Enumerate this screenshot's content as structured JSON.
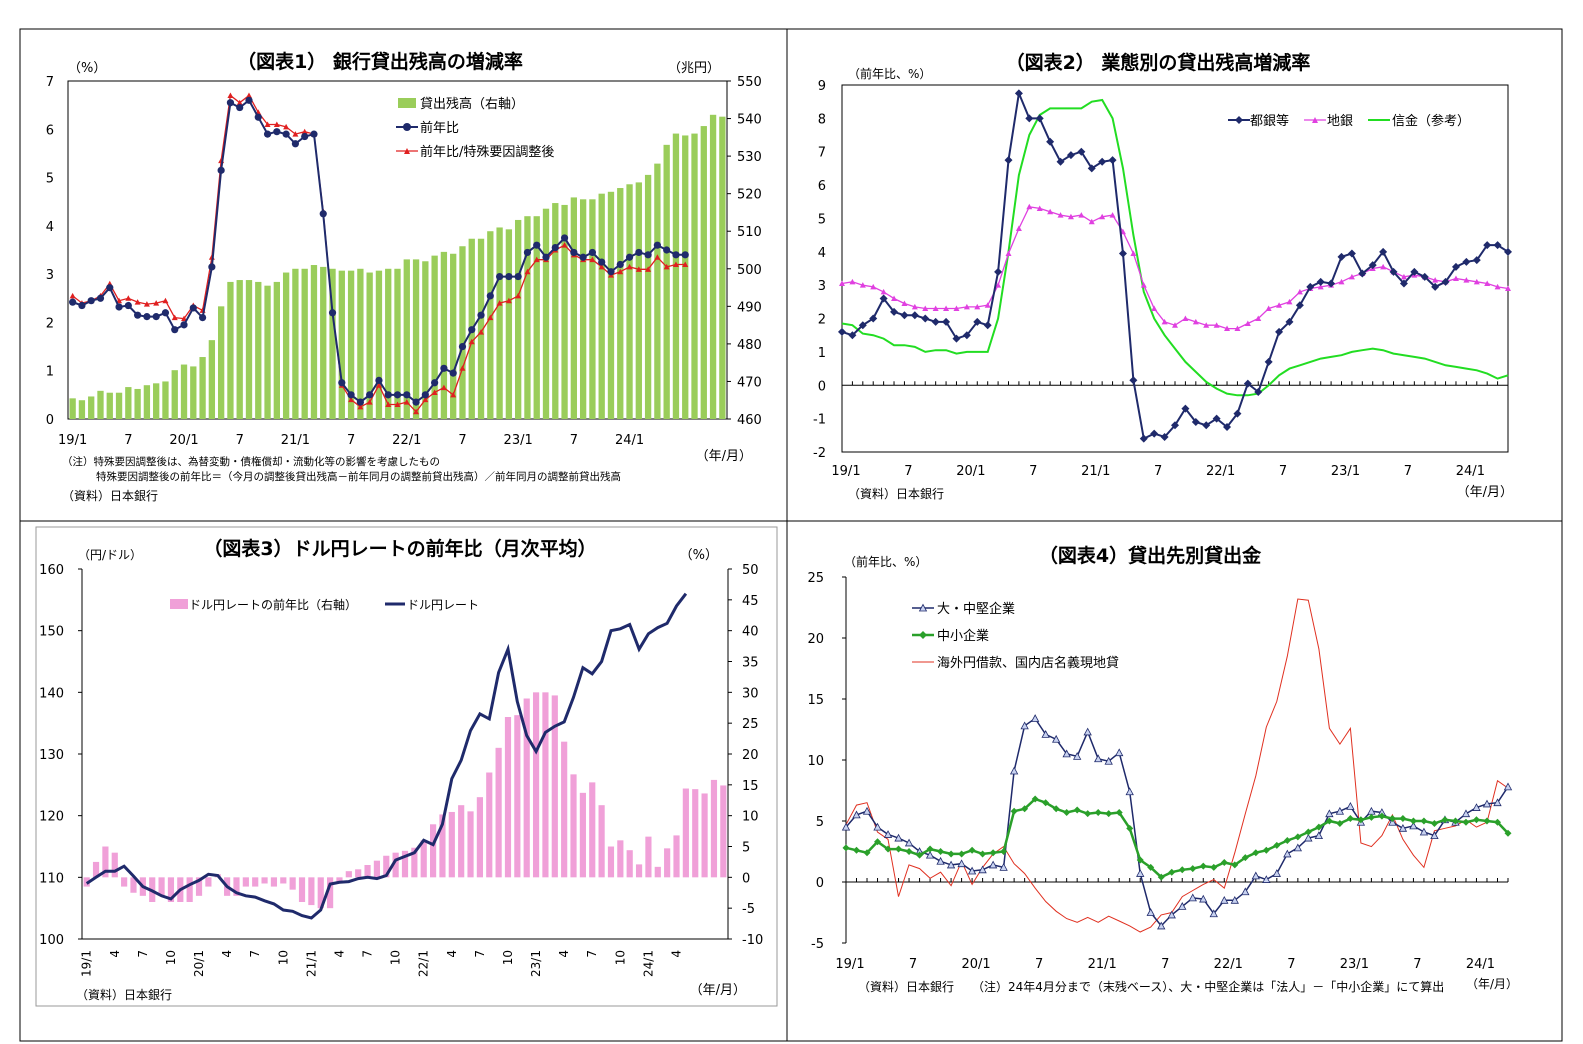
{
  "charts": [
    {
      "title": "（図表1） 銀行貸出残高の増減率",
      "left_unit": "（%）",
      "right_unit": "（兆円）",
      "left_ticks": [
        "0",
        "1",
        "2",
        "3",
        "4",
        "5",
        "6",
        "7"
      ],
      "right_ticks": [
        "460",
        "470",
        "480",
        "490",
        "500",
        "510",
        "520",
        "530",
        "540",
        "550"
      ],
      "x_labels": [
        "19/1",
        "7",
        "20/1",
        "7",
        "21/1",
        "7",
        "22/1",
        "7",
        "23/1",
        "7",
        "24/1"
      ],
      "x_unit": "（年/月）",
      "legend": [
        "貸出残高（右軸）",
        "前年比",
        "前年比/特殊要因調整後"
      ],
      "notes": [
        "（注）特殊要因調整後は、為替変動・債権償却・流動化等の影響を考慮したもの",
        "特殊要因調整後の前年比＝（今月の調整後貸出残高－前年同月の調整前貸出残高）／前年同月の調整前貸出残高",
        "（資料）日本銀行"
      ]
    },
    {
      "title": "（図表2） 業態別の貸出残高増減率",
      "left_unit": "（前年比、%）",
      "left_ticks": [
        "-2",
        "-1",
        "0",
        "1",
        "2",
        "3",
        "4",
        "5",
        "6",
        "7",
        "8",
        "9"
      ],
      "x_labels": [
        "19/1",
        "7",
        "20/1",
        "7",
        "21/1",
        "7",
        "22/1",
        "7",
        "23/1",
        "7",
        "24/1"
      ],
      "x_unit": "（年/月）",
      "legend": [
        "都銀等",
        "地銀",
        "信金（参考）"
      ],
      "notes": [
        "（資料）日本銀行"
      ]
    },
    {
      "title": "（図表3）ドル円レートの前年比（月次平均）",
      "left_unit": "（円/ドル）",
      "right_unit": "（%）",
      "left_ticks": [
        "100",
        "110",
        "120",
        "130",
        "140",
        "150",
        "160"
      ],
      "right_ticks": [
        "-10",
        "-5",
        "0",
        "5",
        "10",
        "15",
        "20",
        "25",
        "30",
        "35",
        "40",
        "45",
        "50"
      ],
      "x_labels": [
        "19/1",
        "4",
        "7",
        "10",
        "20/1",
        "4",
        "7",
        "10",
        "21/1",
        "4",
        "7",
        "10",
        "22/1",
        "4",
        "7",
        "10",
        "23/1",
        "4",
        "7",
        "10",
        "24/1",
        "4"
      ],
      "x_unit": "（年/月）",
      "legend": [
        "ドル円レートの前年比（右軸）",
        "ドル円レート"
      ],
      "notes": [
        "（資料）日本銀行"
      ]
    },
    {
      "title": "（図表4）貸出先別貸出金",
      "left_unit": "（前年比、%）",
      "left_ticks": [
        "-5",
        "0",
        "5",
        "10",
        "15",
        "20",
        "25"
      ],
      "x_labels": [
        "19/1",
        "7",
        "20/1",
        "7",
        "21/1",
        "7",
        "22/1",
        "7",
        "23/1",
        "7",
        "24/1"
      ],
      "x_unit": "（年/月）",
      "legend": [
        "大・中堅企業",
        "中小企業",
        "海外円借款、国内店名義現地貸"
      ],
      "notes": [
        "（資料）日本銀行　　（注）24年4月分まで（末残ベース）、大・中堅企業は「法人」－「中小企業」にて算出"
      ]
    }
  ],
  "colors": {
    "bar_green": "#9ACD5A",
    "navy": "#1F2A6B",
    "red": "#E02020",
    "magenta": "#E040E0",
    "green_line": "#22DD22",
    "pink_bar": "#F0A0D8",
    "dark_green": "#2AA02A",
    "thin_red": "#E03020"
  },
  "chart_data": [
    {
      "type": "bar+line",
      "name": "fig1",
      "bar_values": [
        465.5,
        465,
        466,
        467.5,
        467,
        467,
        468.5,
        468,
        469,
        469.5,
        470,
        473,
        474.5,
        474,
        476.5,
        481,
        490,
        496.5,
        497,
        497,
        496.5,
        495.5,
        496.5,
        499,
        500,
        500,
        501,
        500.5,
        500,
        499.5,
        499.5,
        500,
        499,
        499.5,
        500,
        500,
        502.5,
        502.5,
        502,
        503.5,
        504.5,
        504,
        506,
        508,
        508,
        510,
        511,
        510.5,
        513,
        514,
        514,
        516,
        517.5,
        517,
        519,
        518.5,
        518.5,
        520,
        520.5,
        521.5,
        522.5,
        523,
        525,
        528,
        533,
        536,
        535.5,
        536,
        538,
        541,
        540.5
      ],
      "yoy": [
        2.42,
        2.35,
        2.45,
        2.5,
        2.72,
        2.32,
        2.35,
        2.15,
        2.12,
        2.12,
        2.2,
        1.85,
        1.95,
        2.3,
        2.1,
        3.15,
        5.15,
        6.55,
        6.45,
        6.6,
        6.25,
        5.9,
        5.95,
        5.9,
        5.7,
        5.85,
        5.9,
        4.25,
        2.2,
        0.75,
        0.5,
        0.35,
        0.5,
        0.8,
        0.5,
        0.5,
        0.5,
        0.35,
        0.5,
        0.75,
        1.05,
        0.95,
        1.5,
        1.85,
        2.15,
        2.55,
        2.95,
        2.95,
        2.95,
        3.45,
        3.6,
        3.35,
        3.55,
        3.75,
        3.45,
        3.35,
        3.45,
        3.25,
        3.05,
        3.2,
        3.35,
        3.45,
        3.4,
        3.6,
        3.5,
        3.4,
        3.4
      ],
      "adj": [
        2.55,
        2.4,
        2.45,
        2.55,
        2.8,
        2.45,
        2.5,
        2.42,
        2.38,
        2.4,
        2.45,
        2.1,
        2.08,
        2.35,
        2.25,
        3.35,
        5.35,
        6.7,
        6.55,
        6.7,
        6.35,
        6.1,
        6.1,
        6.05,
        5.9,
        5.95,
        5.9,
        4.3,
        2.2,
        0.7,
        0.4,
        0.25,
        0.35,
        0.7,
        0.3,
        0.3,
        0.35,
        0.15,
        0.4,
        0.55,
        0.65,
        0.5,
        1.05,
        1.6,
        1.8,
        2.1,
        2.4,
        2.45,
        2.55,
        3.05,
        3.3,
        3.3,
        3.5,
        3.6,
        3.4,
        3.3,
        3.3,
        3.15,
        2.98,
        3.05,
        3.15,
        3.1,
        3.1,
        3.35,
        3.15,
        3.2,
        3.2
      ]
    },
    {
      "type": "line",
      "name": "fig2",
      "city": [
        1.6,
        1.5,
        1.8,
        2.0,
        2.6,
        2.2,
        2.1,
        2.1,
        2.0,
        1.9,
        1.9,
        1.4,
        1.5,
        1.9,
        1.8,
        3.4,
        6.75,
        8.75,
        8.0,
        8.0,
        7.3,
        6.7,
        6.9,
        7.0,
        6.5,
        6.7,
        6.75,
        3.95,
        0.15,
        -1.6,
        -1.45,
        -1.55,
        -1.2,
        -0.7,
        -1.1,
        -1.2,
        -1.0,
        -1.25,
        -0.85,
        0.05,
        -0.2,
        0.7,
        1.6,
        1.9,
        2.4,
        2.95,
        3.1,
        3.05,
        3.85,
        3.95,
        3.35,
        3.6,
        4.0,
        3.4,
        3.05,
        3.4,
        3.25,
        2.95,
        3.1,
        3.55,
        3.7,
        3.75,
        4.2,
        4.2,
        4.0
      ],
      "regional": [
        3.05,
        3.1,
        3.0,
        2.95,
        2.8,
        2.6,
        2.45,
        2.35,
        2.3,
        2.3,
        2.3,
        2.3,
        2.35,
        2.35,
        2.4,
        3.0,
        3.95,
        4.7,
        5.35,
        5.3,
        5.2,
        5.1,
        5.05,
        5.1,
        4.9,
        5.05,
        5.1,
        4.6,
        3.95,
        3.0,
        2.3,
        1.9,
        1.8,
        2.0,
        1.9,
        1.8,
        1.8,
        1.7,
        1.7,
        1.85,
        2.0,
        2.3,
        2.4,
        2.5,
        2.8,
        2.9,
        2.95,
        3.0,
        3.1,
        3.25,
        3.35,
        3.5,
        3.55,
        3.4,
        3.25,
        3.3,
        3.25,
        3.15,
        3.1,
        3.2,
        3.15,
        3.1,
        3.05,
        2.95,
        2.9
      ],
      "shinkin": [
        1.85,
        1.8,
        1.55,
        1.5,
        1.4,
        1.2,
        1.2,
        1.15,
        1.0,
        1.05,
        1.05,
        0.95,
        1.0,
        1.0,
        1.0,
        2.0,
        4.0,
        6.3,
        7.5,
        8.1,
        8.3,
        8.3,
        8.3,
        8.3,
        8.5,
        8.55,
        8.0,
        6.5,
        4.5,
        2.8,
        2.0,
        1.5,
        1.1,
        0.7,
        0.4,
        0.1,
        -0.1,
        -0.25,
        -0.3,
        -0.3,
        -0.25,
        0.0,
        0.3,
        0.5,
        0.6,
        0.7,
        0.8,
        0.85,
        0.9,
        1.0,
        1.05,
        1.1,
        1.05,
        0.95,
        0.9,
        0.85,
        0.8,
        0.7,
        0.6,
        0.55,
        0.5,
        0.45,
        0.35,
        0.2,
        0.3
      ]
    },
    {
      "type": "bar+line",
      "name": "fig3",
      "yoy_bars": [
        -1.5,
        2.5,
        5,
        4,
        -1.5,
        -2.5,
        -3,
        -4,
        -3,
        -4,
        -4,
        -4,
        -3,
        -1.5,
        0.5,
        -3,
        -3,
        -1.5,
        -1.5,
        -1,
        -1.5,
        -1,
        -2,
        -4,
        -4.5,
        -5,
        -5,
        -1,
        1,
        1.3,
        2,
        2.7,
        3.5,
        4,
        4.3,
        4.8,
        6,
        8.6,
        10.2,
        10.6,
        11.7,
        10.7,
        13,
        17,
        21,
        26,
        26.3,
        29,
        30,
        30,
        29.5,
        22,
        16.7,
        13.7,
        15.4,
        11.7,
        5,
        6,
        4.4,
        2.1,
        6.6,
        1.7,
        4.7,
        6.8,
        14.4,
        14.3,
        13.6,
        15.8,
        14.9
      ],
      "usdjpy": [
        109,
        110,
        111,
        111,
        111.8,
        110.2,
        108.5,
        107.8,
        107,
        106.5,
        108,
        108.8,
        109.5,
        110.5,
        110.3,
        108.5,
        107.5,
        107,
        106.8,
        106.2,
        105.7,
        104.7,
        104.5,
        103.8,
        103.4,
        104.7,
        108.9,
        109.2,
        109.3,
        109.8,
        110,
        109.8,
        110.3,
        112.8,
        113.4,
        114,
        116,
        115.3,
        118.6,
        126,
        129,
        133.8,
        136.5,
        135.7,
        143.2,
        147,
        138.5,
        133,
        130.4,
        133.5,
        134.5,
        135.2,
        139.2,
        144,
        143,
        145,
        150,
        150.3,
        151,
        147,
        149.5,
        150.5,
        151.2,
        154,
        156
      ]
    },
    {
      "type": "line",
      "name": "fig4",
      "large": [
        4.5,
        5.5,
        5.8,
        4.5,
        3.9,
        3.6,
        3.2,
        2.5,
        2.2,
        1.7,
        1.4,
        1.5,
        0.9,
        1,
        1.4,
        1.2,
        9.1,
        12.8,
        13.4,
        12.1,
        11.7,
        10.5,
        10.3,
        12.3,
        10.1,
        9.9,
        10.6,
        7.4,
        0.7,
        -2.5,
        -3.6,
        -2.7,
        -2,
        -1.3,
        -1.4,
        -2.6,
        -1.5,
        -1.5,
        -0.8,
        0.5,
        0.2,
        0.7,
        2.3,
        2.8,
        3.6,
        3.8,
        5.6,
        5.8,
        6.2,
        4.9,
        5.8,
        5.7,
        4.9,
        4.4,
        4.6,
        4.1,
        3.8,
        5.1,
        4.9,
        5.6,
        6.1,
        6.4,
        6.5,
        7.8
      ]
    },
    {
      "type": "line_extra",
      "name": "fig4b",
      "sme": [
        2.8,
        2.6,
        2.4,
        3.3,
        2.7,
        2.7,
        2.5,
        2.2,
        2.7,
        2.5,
        2.3,
        2.3,
        2.6,
        2.3,
        2.4,
        2.5,
        5.8,
        6.0,
        6.8,
        6.5,
        6.0,
        5.7,
        5.9,
        5.6,
        5.7,
        5.6,
        5.7,
        4.4,
        1.8,
        1.2,
        0.4,
        0.8,
        1.0,
        1.1,
        1.3,
        1.2,
        1.6,
        1.4,
        2.0,
        2.4,
        2.6,
        3.0,
        3.4,
        3.7,
        4.1,
        4.5,
        5.0,
        4.8,
        5.2,
        5.1,
        5.3,
        5.4,
        5.2,
        5.2,
        5.0,
        5.0,
        4.8,
        5.1,
        5.0,
        4.9,
        5.1,
        5.0,
        4.9,
        4.0
      ],
      "overseas": [
        4.7,
        6.3,
        6.5,
        4.1,
        3.5,
        -1.2,
        1.4,
        1.1,
        0.3,
        0.8,
        -0.3,
        1.7,
        -0.2,
        1.2,
        2.3,
        2.9,
        1.5,
        0.7,
        -0.5,
        -1.6,
        -2.4,
        -3,
        -3.3,
        -2.9,
        -3.3,
        -2.8,
        -3.2,
        -3.6,
        -4.1,
        -3.7,
        -2.7,
        -2.5,
        -1.2,
        -0.7,
        -0.2,
        0.2,
        -0.5,
        2.4,
        5.6,
        8.7,
        12.7,
        14.8,
        18.5,
        23.2,
        23.1,
        19.1,
        12.6,
        11.3,
        12.6,
        3.2,
        2.9,
        3.8,
        5.5,
        3.5,
        2.2,
        1.2,
        4.2,
        4.4,
        4.6,
        5.1,
        4.5,
        4.9,
        8.3,
        7.7
      ]
    }
  ]
}
